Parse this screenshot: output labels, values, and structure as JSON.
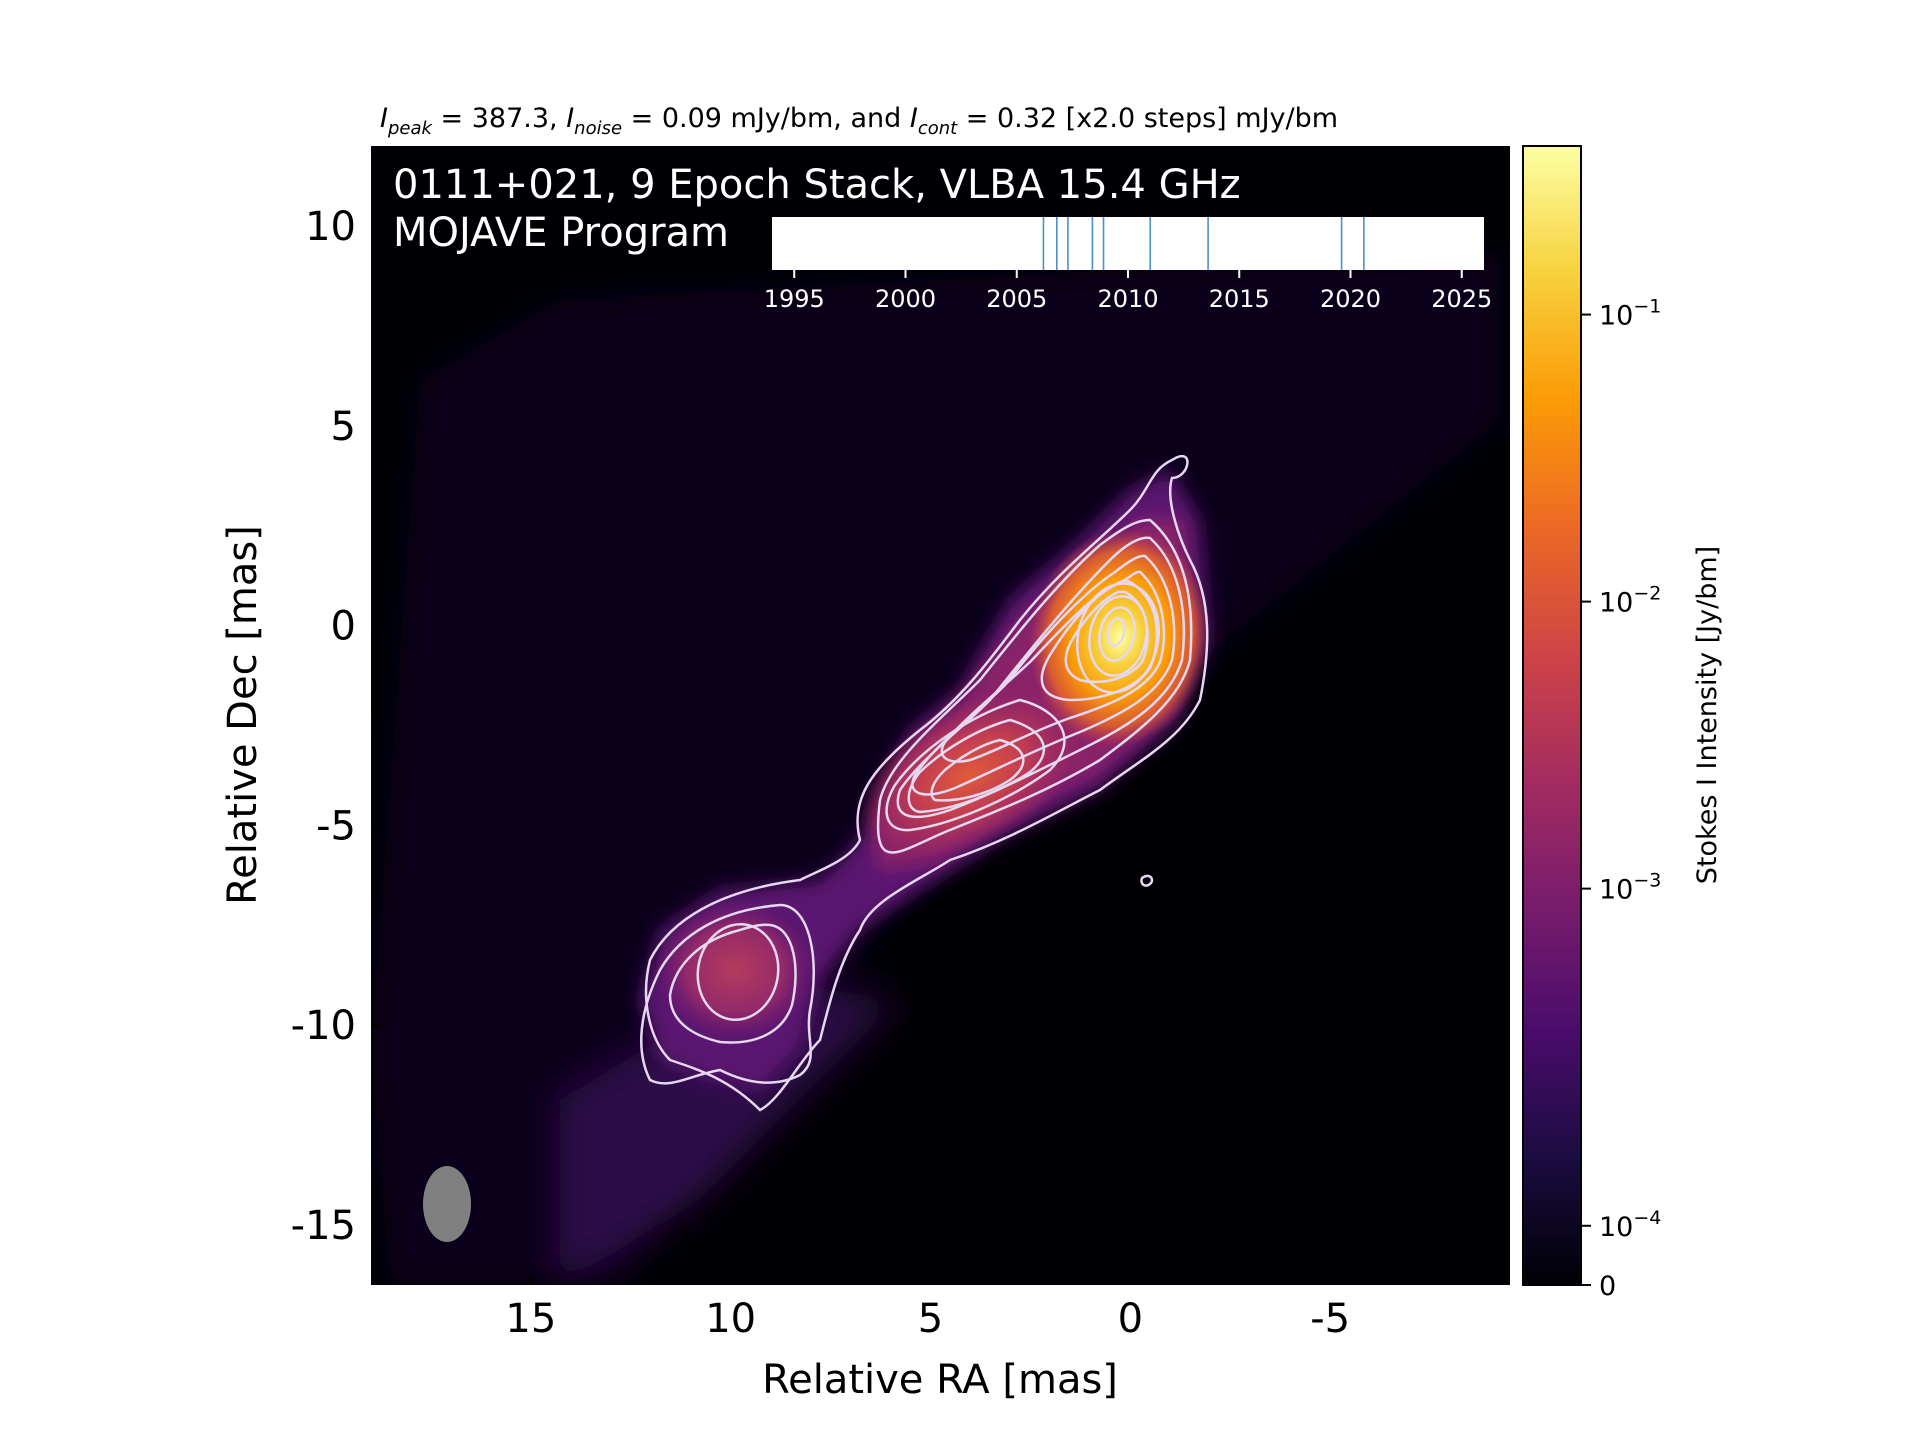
{
  "chart_data": {
    "type": "heatmap",
    "header": {
      "peak_sym": "I",
      "peak_sub": "peak",
      "peak_text": " = 387.3, ",
      "noise_sym": "I",
      "noise_sub": "noise",
      "noise_text": " = 0.09 mJy/bm, and ",
      "cont_sym": "I",
      "cont_sub": "cont",
      "cont_text": " = 0.32 [x2.0 steps] mJy/bm"
    },
    "title_line1": "0111+021, 9 Epoch Stack, VLBA 15.4 GHz",
    "title_line2": "MOJAVE Program",
    "xlabel": "Relative RA [mas]",
    "ylabel": "Relative Dec [mas]",
    "xlim": [
      19.0,
      -9.5
    ],
    "ylim": [
      -16.5,
      12.0
    ],
    "x_ticks": [
      {
        "value": 15,
        "label": "15"
      },
      {
        "value": 10,
        "label": "10"
      },
      {
        "value": 5,
        "label": "5"
      },
      {
        "value": 0,
        "label": "0"
      },
      {
        "value": -5,
        "label": "-5"
      }
    ],
    "y_ticks": [
      {
        "value": 10,
        "label": "10"
      },
      {
        "value": 5,
        "label": "5"
      },
      {
        "value": 0,
        "label": "0"
      },
      {
        "value": -5,
        "label": "-5"
      },
      {
        "value": -10,
        "label": "-10"
      },
      {
        "value": -15,
        "label": "-15"
      }
    ],
    "colorbar": {
      "label": "Stokes I Intensity [Jy/bm]",
      "scale": "log",
      "ticks": [
        {
          "base": "10",
          "exp": "−1",
          "frac": 0.852
        },
        {
          "base": "10",
          "exp": "−2",
          "frac": 0.6
        },
        {
          "base": "10",
          "exp": "−3",
          "frac": 0.348
        },
        {
          "base": "10",
          "exp": "−4",
          "frac": 0.052
        },
        {
          "base": "0",
          "exp": "",
          "frac": 0.0
        }
      ],
      "colors": [
        "#000004",
        "#1b0c41",
        "#4a0c6b",
        "#781c6d",
        "#a52c60",
        "#cf4446",
        "#ed6925",
        "#fb9b06",
        "#f7d13d",
        "#fcffa4"
      ]
    },
    "timeline": {
      "xlim": [
        1994,
        2026
      ],
      "ticks": [
        "1995",
        "2000",
        "2005",
        "2010",
        "2015",
        "2020",
        "2025"
      ],
      "epochs": [
        2006.2,
        2006.8,
        2007.3,
        2008.4,
        2008.9,
        2011.0,
        2013.6,
        2019.6,
        2020.6
      ],
      "line_color": "#4a90c2"
    },
    "contour_color": "#e6d8f0",
    "beam_color": "#808080"
  }
}
